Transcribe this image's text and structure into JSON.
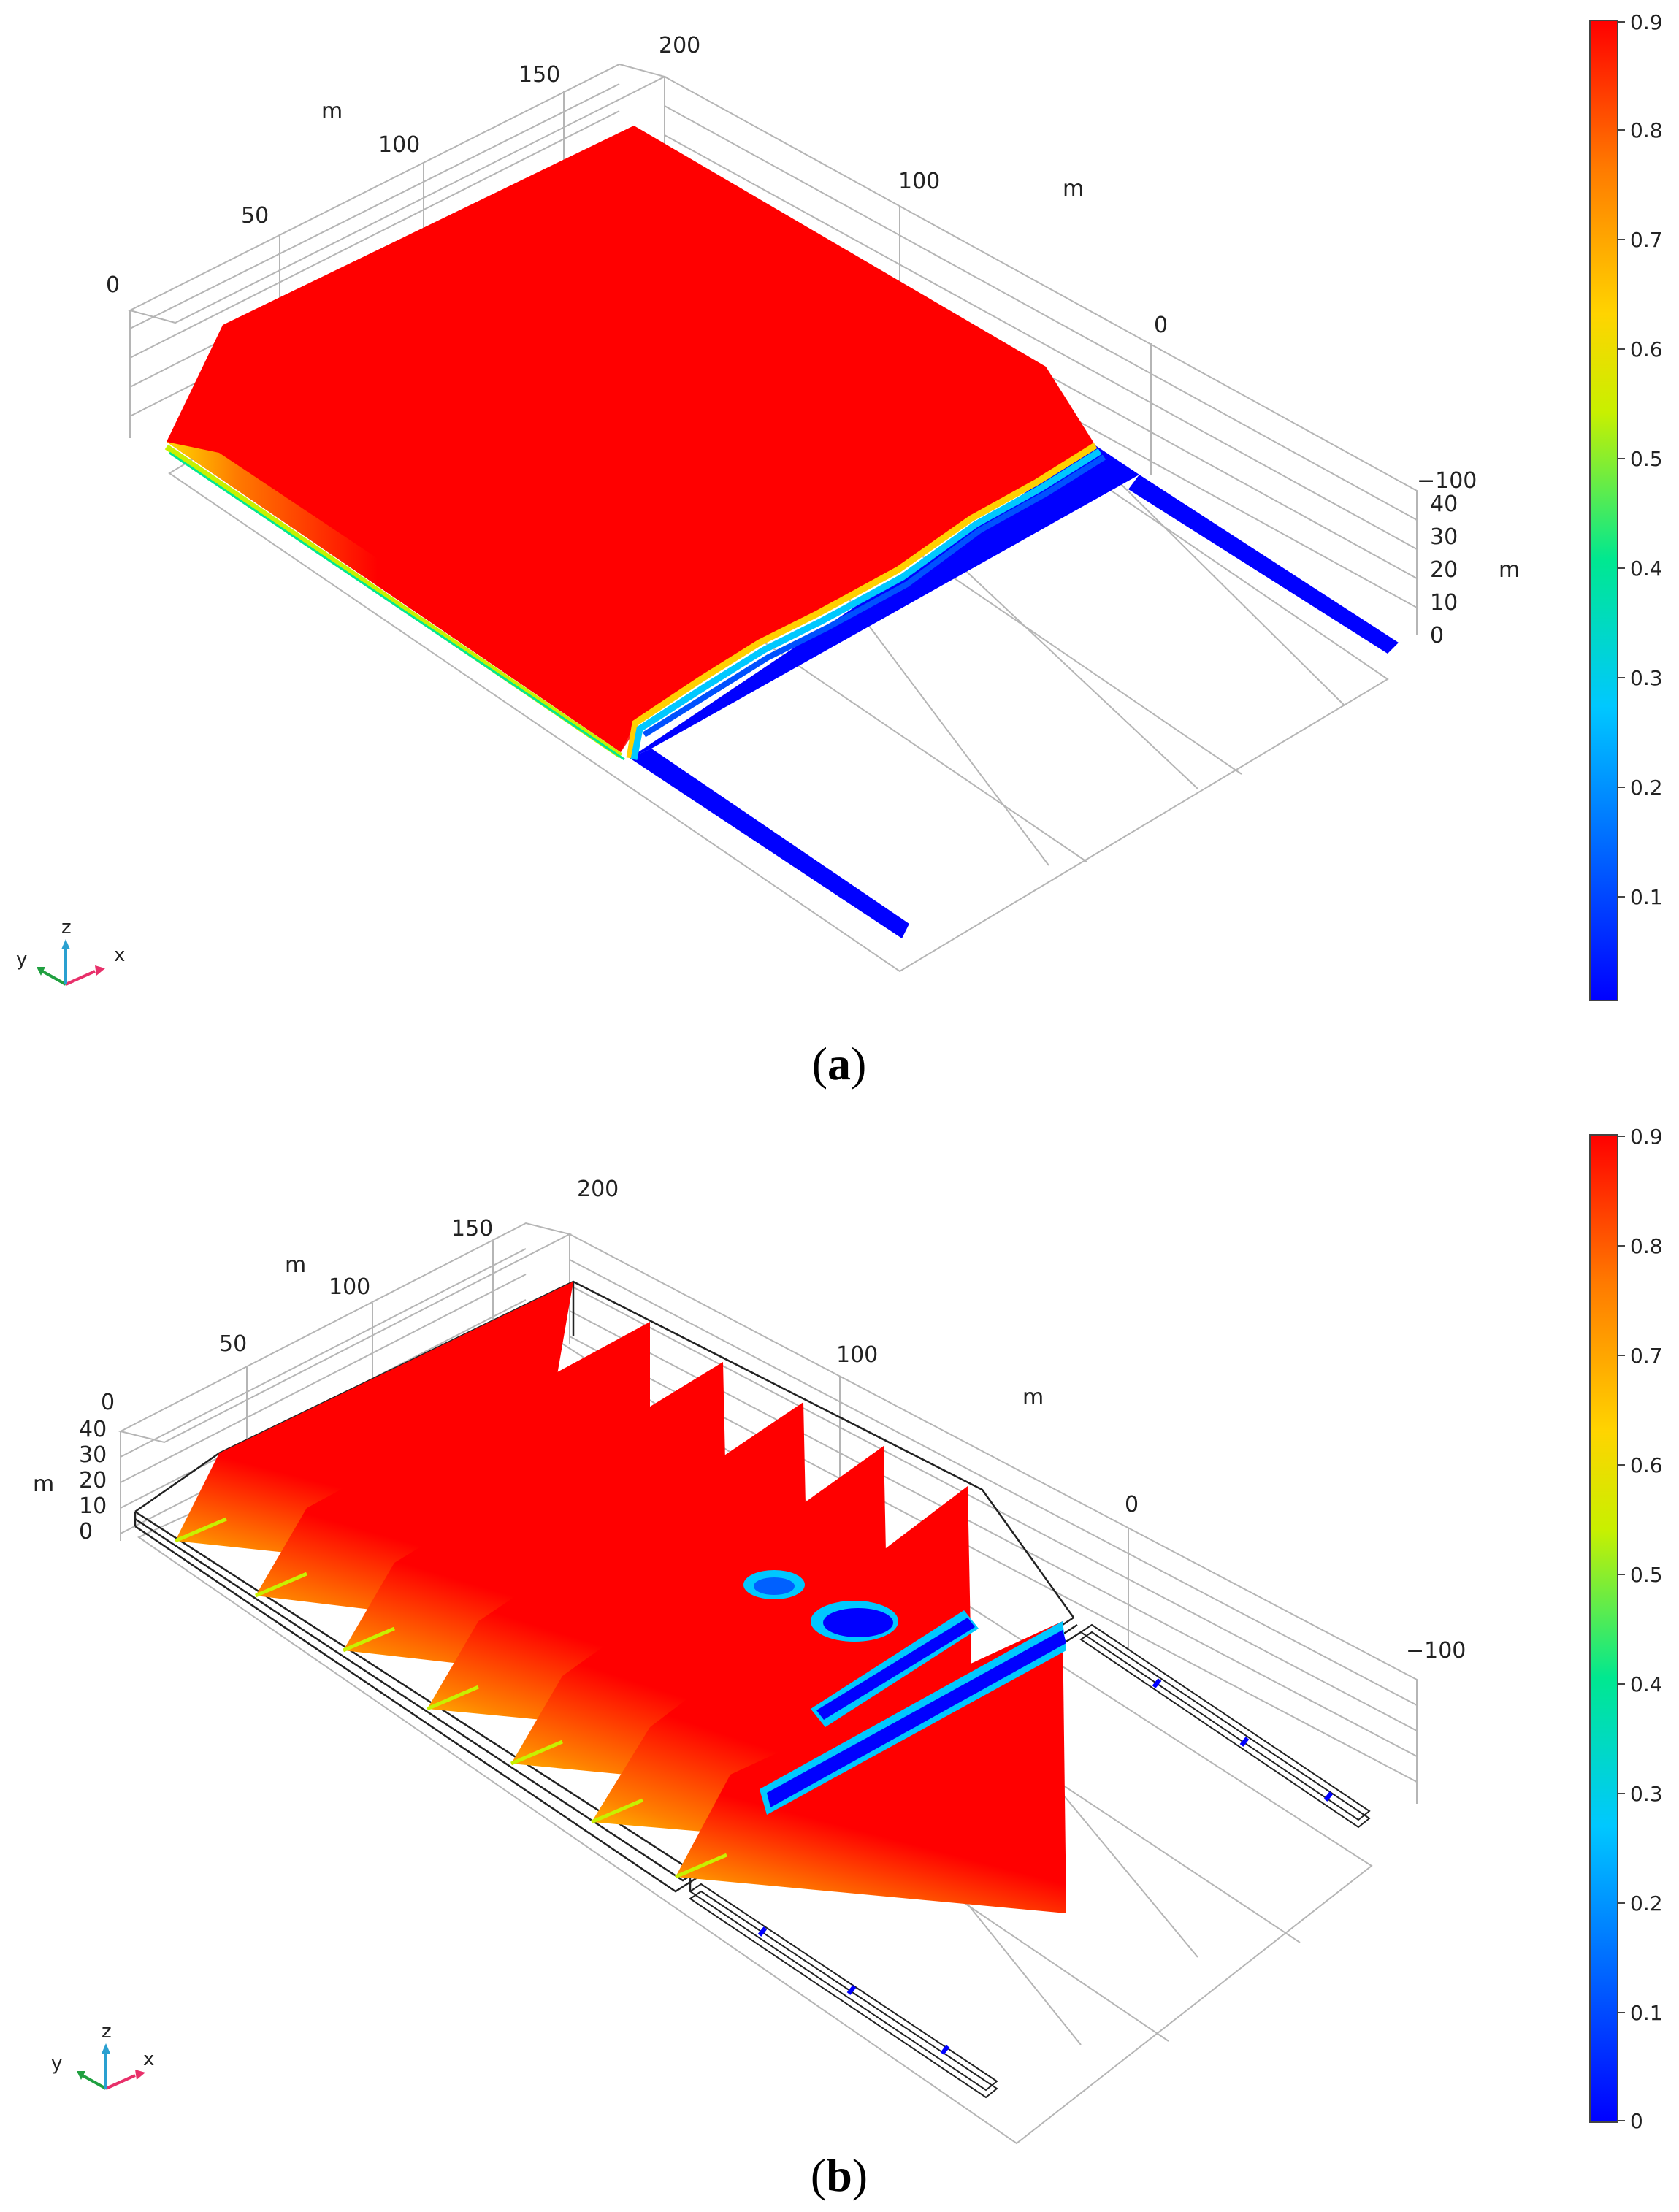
{
  "panels": [
    {
      "id": "a",
      "caption_open": "(",
      "caption_letter": "a",
      "caption_close": ")",
      "unit": "m",
      "top_ticks": [
        "0",
        "50",
        "100",
        "150",
        "200"
      ],
      "right_ticks": [
        "100",
        "0",
        "−100"
      ],
      "z_ticks": [
        "40",
        "30",
        "20",
        "10",
        "0"
      ],
      "colorbar_ticks": [
        "0.9",
        "0.8",
        "0.7",
        "0.6",
        "0.5",
        "0.4",
        "0.3",
        "0.2",
        "0.1"
      ],
      "triad": {
        "x": "x",
        "y": "y",
        "z": "z"
      }
    },
    {
      "id": "b",
      "caption_open": "(",
      "caption_letter": "b",
      "caption_close": ")",
      "unit": "m",
      "top_ticks": [
        "0",
        "50",
        "100",
        "150",
        "200"
      ],
      "right_ticks": [
        "100",
        "0",
        "−100"
      ],
      "z_ticks": [
        "40",
        "30",
        "20",
        "10",
        "0"
      ],
      "colorbar_ticks": [
        "0.9",
        "0.8",
        "0.7",
        "0.6",
        "0.5",
        "0.4",
        "0.3",
        "0.2",
        "0.1",
        "0"
      ],
      "triad": {
        "x": "x",
        "y": "y",
        "z": "z"
      }
    }
  ],
  "colors": {
    "high": "#ff0000",
    "low": "#0000ff",
    "colormap": [
      "#0000ff",
      "#0060ff",
      "#00c8ff",
      "#00e890",
      "#c8f000",
      "#ffd000",
      "#ff7a00",
      "#ff0000"
    ]
  }
}
